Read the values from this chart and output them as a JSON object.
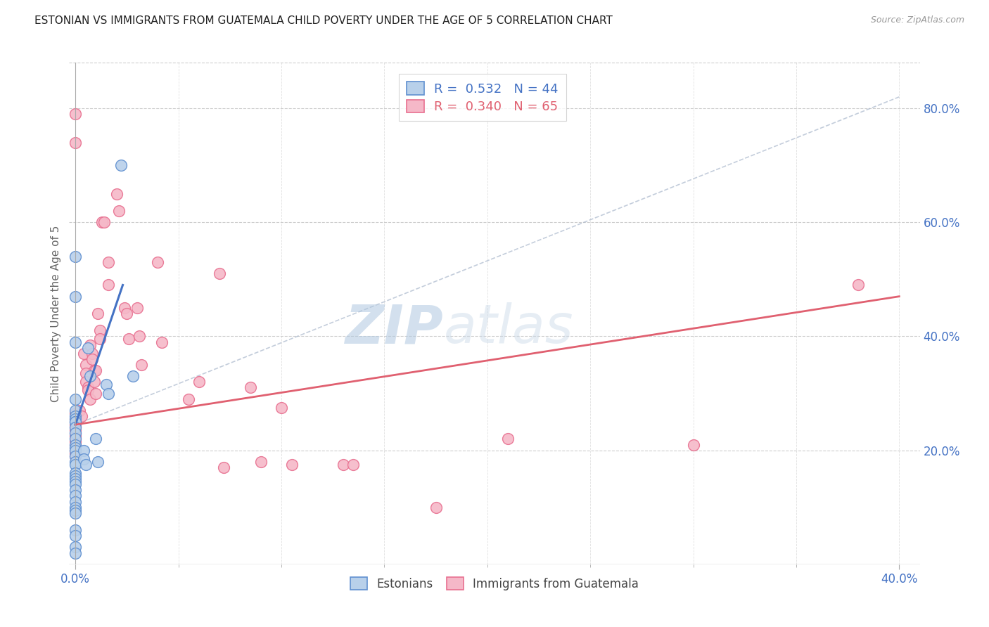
{
  "title": "ESTONIAN VS IMMIGRANTS FROM GUATEMALA CHILD POVERTY UNDER THE AGE OF 5 CORRELATION CHART",
  "source": "Source: ZipAtlas.com",
  "ylabel": "Child Poverty Under the Age of 5",
  "right_yticks": [
    "80.0%",
    "60.0%",
    "40.0%",
    "20.0%"
  ],
  "right_ytick_vals": [
    0.8,
    0.6,
    0.4,
    0.2
  ],
  "legend_blue_r": "0.532",
  "legend_blue_n": "44",
  "legend_pink_r": "0.340",
  "legend_pink_n": "65",
  "legend_label_blue": "Estonians",
  "legend_label_pink": "Immigrants from Guatemala",
  "blue_fill": "#b8d0ea",
  "pink_fill": "#f5b8c8",
  "blue_edge": "#6090d0",
  "pink_edge": "#e87090",
  "blue_line_color": "#4472c4",
  "pink_line_color": "#e06070",
  "blue_scatter": [
    [
      0.0,
      0.54
    ],
    [
      0.0,
      0.47
    ],
    [
      0.0,
      0.39
    ],
    [
      0.0,
      0.29
    ],
    [
      0.0,
      0.27
    ],
    [
      0.0,
      0.26
    ],
    [
      0.0,
      0.255
    ],
    [
      0.0,
      0.25
    ],
    [
      0.0,
      0.25
    ],
    [
      0.0,
      0.24
    ],
    [
      0.0,
      0.23
    ],
    [
      0.0,
      0.22
    ],
    [
      0.0,
      0.21
    ],
    [
      0.0,
      0.205
    ],
    [
      0.0,
      0.2
    ],
    [
      0.0,
      0.19
    ],
    [
      0.0,
      0.18
    ],
    [
      0.0,
      0.175
    ],
    [
      0.0,
      0.16
    ],
    [
      0.0,
      0.155
    ],
    [
      0.0,
      0.15
    ],
    [
      0.0,
      0.145
    ],
    [
      0.0,
      0.14
    ],
    [
      0.0,
      0.13
    ],
    [
      0.0,
      0.12
    ],
    [
      0.0,
      0.11
    ],
    [
      0.0,
      0.1
    ],
    [
      0.0,
      0.095
    ],
    [
      0.0,
      0.09
    ],
    [
      0.0,
      0.06
    ],
    [
      0.0,
      0.05
    ],
    [
      0.0,
      0.03
    ],
    [
      0.0,
      0.02
    ],
    [
      0.004,
      0.2
    ],
    [
      0.004,
      0.185
    ],
    [
      0.005,
      0.175
    ],
    [
      0.006,
      0.38
    ],
    [
      0.007,
      0.33
    ],
    [
      0.01,
      0.22
    ],
    [
      0.011,
      0.18
    ],
    [
      0.015,
      0.315
    ],
    [
      0.016,
      0.3
    ],
    [
      0.022,
      0.7
    ],
    [
      0.028,
      0.33
    ]
  ],
  "pink_scatter": [
    [
      0.0,
      0.79
    ],
    [
      0.0,
      0.74
    ],
    [
      0.0,
      0.265
    ],
    [
      0.0,
      0.255
    ],
    [
      0.0,
      0.25
    ],
    [
      0.0,
      0.245
    ],
    [
      0.0,
      0.24
    ],
    [
      0.0,
      0.235
    ],
    [
      0.0,
      0.23
    ],
    [
      0.0,
      0.225
    ],
    [
      0.0,
      0.22
    ],
    [
      0.0,
      0.215
    ],
    [
      0.0,
      0.21
    ],
    [
      0.0,
      0.205
    ],
    [
      0.0,
      0.2
    ],
    [
      0.0,
      0.195
    ],
    [
      0.0,
      0.19
    ],
    [
      0.002,
      0.27
    ],
    [
      0.003,
      0.26
    ],
    [
      0.004,
      0.37
    ],
    [
      0.005,
      0.35
    ],
    [
      0.005,
      0.335
    ],
    [
      0.005,
      0.32
    ],
    [
      0.006,
      0.31
    ],
    [
      0.006,
      0.305
    ],
    [
      0.007,
      0.29
    ],
    [
      0.007,
      0.385
    ],
    [
      0.008,
      0.37
    ],
    [
      0.008,
      0.36
    ],
    [
      0.009,
      0.34
    ],
    [
      0.009,
      0.32
    ],
    [
      0.01,
      0.34
    ],
    [
      0.01,
      0.3
    ],
    [
      0.011,
      0.44
    ],
    [
      0.012,
      0.41
    ],
    [
      0.012,
      0.395
    ],
    [
      0.013,
      0.6
    ],
    [
      0.014,
      0.6
    ],
    [
      0.016,
      0.53
    ],
    [
      0.016,
      0.49
    ],
    [
      0.02,
      0.65
    ],
    [
      0.021,
      0.62
    ],
    [
      0.024,
      0.45
    ],
    [
      0.025,
      0.44
    ],
    [
      0.026,
      0.395
    ],
    [
      0.03,
      0.45
    ],
    [
      0.031,
      0.4
    ],
    [
      0.032,
      0.35
    ],
    [
      0.04,
      0.53
    ],
    [
      0.042,
      0.39
    ],
    [
      0.055,
      0.29
    ],
    [
      0.06,
      0.32
    ],
    [
      0.07,
      0.51
    ],
    [
      0.072,
      0.17
    ],
    [
      0.085,
      0.31
    ],
    [
      0.09,
      0.18
    ],
    [
      0.1,
      0.275
    ],
    [
      0.105,
      0.175
    ],
    [
      0.13,
      0.175
    ],
    [
      0.135,
      0.175
    ],
    [
      0.175,
      0.1
    ],
    [
      0.21,
      0.22
    ],
    [
      0.3,
      0.21
    ],
    [
      0.38,
      0.49
    ]
  ],
  "blue_line_x": [
    0.0,
    0.023
  ],
  "blue_line_y": [
    0.245,
    0.49
  ],
  "pink_line_x": [
    0.0,
    0.4
  ],
  "pink_line_y": [
    0.245,
    0.47
  ],
  "dashed_line_x": [
    0.0,
    0.4
  ],
  "dashed_line_y": [
    0.245,
    0.82
  ],
  "xmin": -0.003,
  "xmax": 0.41,
  "ymin": 0.0,
  "ymax": 0.88,
  "watermark_zip": "ZIP",
  "watermark_atlas": "atlas",
  "title_fontsize": 11,
  "axis_tick_color": "#4472c4",
  "grid_color": "#cccccc",
  "background_color": "#ffffff"
}
